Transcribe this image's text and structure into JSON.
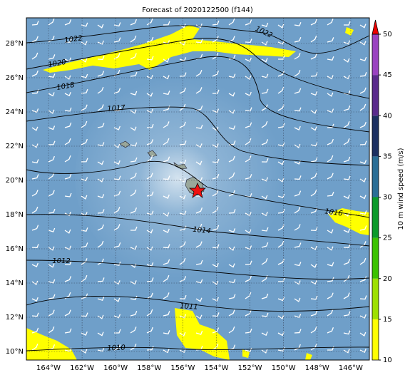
{
  "title": "Forecast of 2020122500 (f144)",
  "lat_labels": [
    "28°N",
    "26°N",
    "24°N",
    "22°N",
    "20°N",
    "18°N",
    "16°N",
    "14°N",
    "12°N",
    "10°N"
  ],
  "lon_labels": [
    "164°W",
    "162°W",
    "160°W",
    "158°W",
    "156°W",
    "154°W",
    "152°W",
    "150°W",
    "148°W",
    "146°W"
  ],
  "isobar_labels": [
    1022,
    1022,
    1020,
    1018,
    1017,
    1016,
    1014,
    1012,
    1011,
    1010
  ],
  "colorbar": {
    "label": "10 m wind speed (m/s)",
    "lim": [
      10,
      50
    ],
    "ticks": [
      10,
      15,
      20,
      25,
      30,
      35,
      40,
      45,
      50
    ],
    "colors": [
      "#ffff00",
      "#9ee000",
      "#3cc200",
      "#0b9a2a",
      "#2a6e96",
      "#1c2f60",
      "#5a2a8c",
      "#9a42c0"
    ],
    "extend_color": "#ee0000"
  }
}
